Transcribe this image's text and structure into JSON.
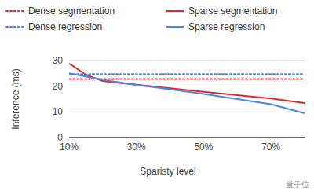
{
  "chart_data": {
    "type": "line",
    "x_label": "Sparisty level",
    "y_label": "Inference (ms)",
    "annotation": "量子位",
    "x": [
      10,
      15,
      20,
      25,
      30,
      40,
      50,
      60,
      70,
      80
    ],
    "xlim": [
      10,
      80
    ],
    "xticks": [
      {
        "value": 10,
        "label": "10%"
      },
      {
        "value": 30,
        "label": "30%"
      },
      {
        "value": 50,
        "label": "50%"
      },
      {
        "value": 70,
        "label": "70%"
      }
    ],
    "ylim": [
      0,
      30
    ],
    "yticks": [
      0,
      10,
      20,
      30
    ],
    "grid": true,
    "legend": "top",
    "series": [
      {
        "name": "Dense segmentation",
        "color": "#e0282e",
        "line_style": "dotted",
        "values": [
          22.8,
          22.8,
          22.8,
          22.8,
          22.8,
          22.8,
          22.8,
          22.8,
          22.8,
          22.8
        ]
      },
      {
        "name": "Sparse segmentation",
        "color": "#e0282e",
        "line_style": "solid",
        "values": [
          28.8,
          24.5,
          22.0,
          21.3,
          20.6,
          19.2,
          17.8,
          16.5,
          15.2,
          13.5
        ]
      },
      {
        "name": "Dense regression",
        "color": "#4a86e8",
        "line_style": "dotted",
        "values": [
          24.7,
          24.7,
          24.7,
          24.7,
          24.7,
          24.7,
          24.7,
          24.7,
          24.7,
          24.7
        ]
      },
      {
        "name": "Sparse regression",
        "color": "#4a86e8",
        "line_style": "solid",
        "values": [
          25.0,
          23.8,
          22.5,
          21.5,
          20.5,
          18.8,
          17.0,
          15.0,
          13.0,
          9.5
        ]
      }
    ]
  }
}
